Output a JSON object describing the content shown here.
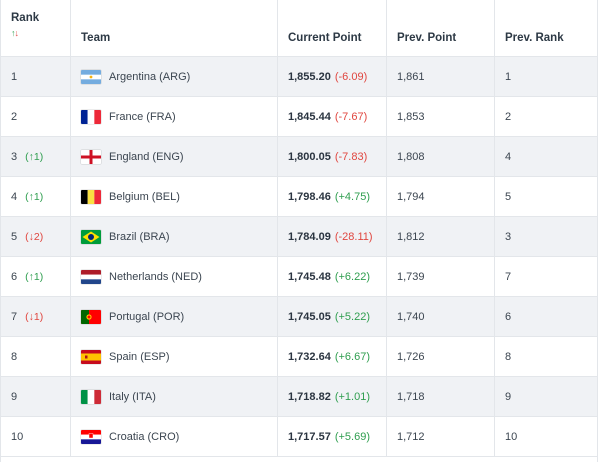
{
  "header": {
    "rank": "Rank",
    "team": "Team",
    "current_point": "Current Point",
    "prev_point": "Prev. Point",
    "prev_rank": "Prev. Rank",
    "sort_up": "↑",
    "sort_down": "↓"
  },
  "rows": [
    {
      "rank": "1",
      "move": "",
      "move_dir": "",
      "flag": "argentina-flag-icon",
      "team": "Argentina (ARG)",
      "points": "1,855.20",
      "change": "(-6.09)",
      "change_dir": "neg",
      "prev_points": "1,861",
      "prev_rank": "1"
    },
    {
      "rank": "2",
      "move": "",
      "move_dir": "",
      "flag": "france-flag-icon",
      "team": "France (FRA)",
      "points": "1,845.44",
      "change": "(-7.67)",
      "change_dir": "neg",
      "prev_points": "1,853",
      "prev_rank": "2"
    },
    {
      "rank": "3",
      "move": "(↑1)",
      "move_dir": "up",
      "flag": "england-flag-icon",
      "team": "England (ENG)",
      "points": "1,800.05",
      "change": "(-7.83)",
      "change_dir": "neg",
      "prev_points": "1,808",
      "prev_rank": "4"
    },
    {
      "rank": "4",
      "move": "(↑1)",
      "move_dir": "up",
      "flag": "belgium-flag-icon",
      "team": "Belgium (BEL)",
      "points": "1,798.46",
      "change": "(+4.75)",
      "change_dir": "pos",
      "prev_points": "1,794",
      "prev_rank": "5"
    },
    {
      "rank": "5",
      "move": "(↓2)",
      "move_dir": "down",
      "flag": "brazil-flag-icon",
      "team": "Brazil (BRA)",
      "points": "1,784.09",
      "change": "(-28.11)",
      "change_dir": "neg",
      "prev_points": "1,812",
      "prev_rank": "3"
    },
    {
      "rank": "6",
      "move": "(↑1)",
      "move_dir": "up",
      "flag": "netherlands-flag-icon",
      "team": "Netherlands (NED)",
      "points": "1,745.48",
      "change": "(+6.22)",
      "change_dir": "pos",
      "prev_points": "1,739",
      "prev_rank": "7"
    },
    {
      "rank": "7",
      "move": "(↓1)",
      "move_dir": "down",
      "flag": "portugal-flag-icon",
      "team": "Portugal (POR)",
      "points": "1,745.05",
      "change": "(+5.22)",
      "change_dir": "pos",
      "prev_points": "1,740",
      "prev_rank": "6"
    },
    {
      "rank": "8",
      "move": "",
      "move_dir": "",
      "flag": "spain-flag-icon",
      "team": "Spain (ESP)",
      "points": "1,732.64",
      "change": "(+6.67)",
      "change_dir": "pos",
      "prev_points": "1,726",
      "prev_rank": "8"
    },
    {
      "rank": "9",
      "move": "",
      "move_dir": "",
      "flag": "italy-flag-icon",
      "team": "Italy (ITA)",
      "points": "1,718.82",
      "change": "(+1.01)",
      "change_dir": "pos",
      "prev_points": "1,718",
      "prev_rank": "9"
    },
    {
      "rank": "10",
      "move": "",
      "move_dir": "",
      "flag": "croatia-flag-icon",
      "team": "Croatia (CRO)",
      "points": "1,717.57",
      "change": "(+5.69)",
      "change_dir": "pos",
      "prev_points": "1,712",
      "prev_rank": "10"
    }
  ],
  "colors": {
    "up": "#2f9e4f",
    "down": "#e0463f",
    "shade": "#f0f2f5",
    "border": "#e3e6ea"
  }
}
